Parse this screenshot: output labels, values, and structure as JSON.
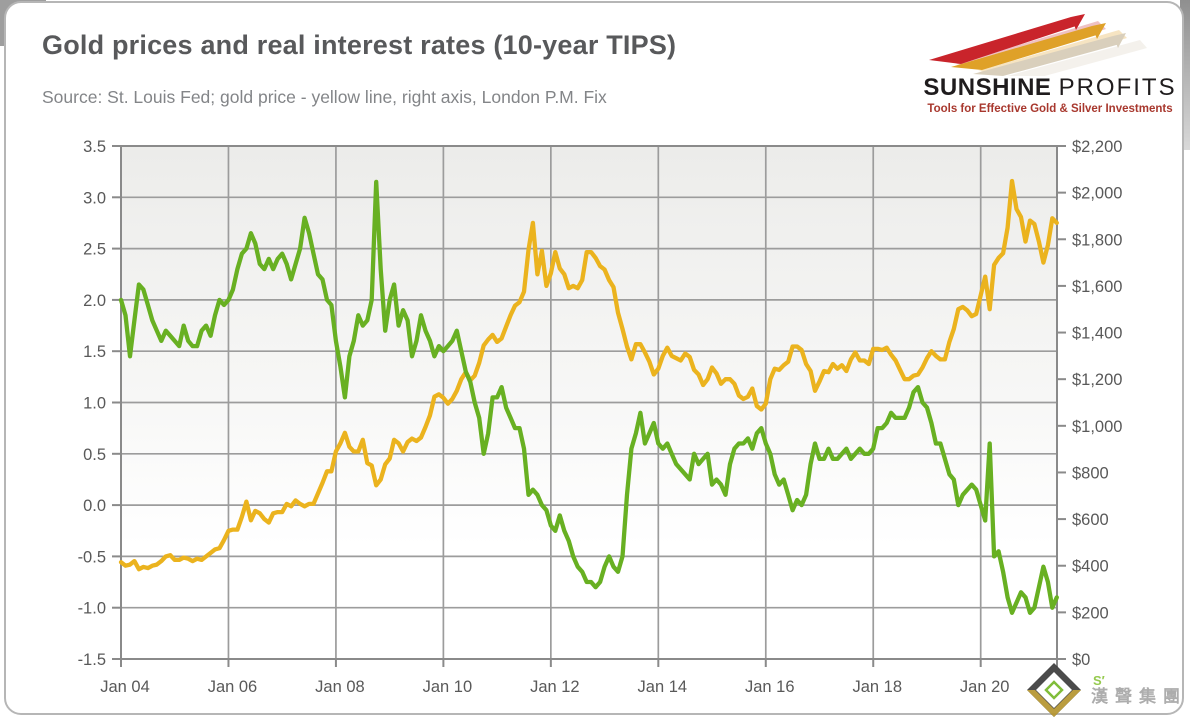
{
  "header": {
    "title": "Gold prices and real interest rates (10-year TIPS)",
    "source_note": "Source: St. Louis Fed; gold price - yellow line, right axis, London P.M. Fix"
  },
  "branding": {
    "name_bold": "SUNSHINE",
    "name_light": "PROFITS",
    "tagline": "Tools for Effective Gold & Silver Investments"
  },
  "watermark": {
    "mark": "S′",
    "company": "漢聲集團"
  },
  "colors": {
    "rate_line": "#68b022",
    "gold_line": "#ebb31e",
    "grid": "#9c9c9c",
    "axis": "#8a8a8a",
    "axis_text": "#595959",
    "title_text": "#58595b",
    "subtitle_text": "#838588",
    "logo_red": "#c9242b",
    "logo_amber": "#dfa128",
    "logo_pale": "#d9cfbc",
    "tagline_red": "#a8382e",
    "wm_dark": "#3c3c3c",
    "wm_gold": "#b5952f",
    "wm_green": "#76b82a"
  },
  "chart_data": {
    "type": "line",
    "title": "Gold prices and real interest rates (10-year TIPS)",
    "grid": true,
    "x_axis": {
      "tick_labels": [
        "Jan 04",
        "Jan 06",
        "Jan 08",
        "Jan 10",
        "Jan 12",
        "Jan 14",
        "Jan 16",
        "Jan 18",
        "Jan 20"
      ],
      "tick_years": [
        2004,
        2006,
        2008,
        2010,
        2012,
        2014,
        2016,
        2018,
        2020
      ],
      "range_years": [
        2004,
        2021.42
      ]
    },
    "y_left": {
      "ticks": [
        3.5,
        3.0,
        2.5,
        2.0,
        1.5,
        1.0,
        0.5,
        0.0,
        -0.5,
        -1.0,
        -1.5
      ],
      "range": [
        -1.5,
        3.5
      ]
    },
    "y_right": {
      "tick_labels": [
        "$2,200",
        "$2,000",
        "$1,800",
        "$1,600",
        "$1,400",
        "$1,200",
        "$1,000",
        "$800",
        "$600",
        "$400",
        "$200",
        "$0"
      ],
      "tick_values": [
        2200,
        2000,
        1800,
        1600,
        1400,
        1200,
        1000,
        800,
        600,
        400,
        200,
        0
      ],
      "range": [
        0,
        2200
      ]
    },
    "series": [
      {
        "name": "gold-price-london-pm-fix",
        "label": "Gold price (yellow line, right axis, London P.M. Fix)",
        "axis": "right",
        "color_key": "gold_line",
        "frequency": "monthly",
        "start_year": 2004,
        "values": [
          415,
          400,
          405,
          420,
          385,
          395,
          390,
          400,
          405,
          420,
          440,
          445,
          425,
          425,
          435,
          430,
          420,
          430,
          425,
          440,
          455,
          470,
          475,
          510,
          550,
          555,
          555,
          610,
          675,
          595,
          635,
          625,
          600,
          585,
          625,
          630,
          630,
          665,
          655,
          680,
          665,
          655,
          665,
          665,
          710,
          755,
          805,
          805,
          890,
          925,
          970,
          910,
          890,
          890,
          940,
          840,
          830,
          745,
          770,
          835,
          860,
          940,
          925,
          890,
          930,
          945,
          935,
          950,
          995,
          1045,
          1125,
          1135,
          1120,
          1095,
          1115,
          1150,
          1200,
          1230,
          1195,
          1215,
          1270,
          1345,
          1370,
          1390,
          1360,
          1375,
          1425,
          1475,
          1515,
          1530,
          1575,
          1755,
          1870,
          1650,
          1750,
          1600,
          1655,
          1745,
          1675,
          1650,
          1590,
          1600,
          1590,
          1625,
          1745,
          1745,
          1720,
          1685,
          1670,
          1625,
          1595,
          1485,
          1415,
          1340,
          1285,
          1350,
          1350,
          1315,
          1275,
          1220,
          1245,
          1300,
          1335,
          1300,
          1290,
          1280,
          1310,
          1295,
          1240,
          1220,
          1175,
          1200,
          1250,
          1225,
          1180,
          1200,
          1200,
          1180,
          1130,
          1115,
          1125,
          1160,
          1085,
          1070,
          1095,
          1200,
          1245,
          1240,
          1260,
          1275,
          1340,
          1340,
          1325,
          1265,
          1235,
          1150,
          1190,
          1235,
          1230,
          1265,
          1245,
          1260,
          1235,
          1285,
          1315,
          1280,
          1280,
          1265,
          1330,
          1330,
          1325,
          1335,
          1305,
          1280,
          1240,
          1200,
          1200,
          1215,
          1220,
          1250,
          1290,
          1320,
          1300,
          1285,
          1285,
          1360,
          1415,
          1500,
          1510,
          1495,
          1470,
          1480,
          1560,
          1640,
          1500,
          1690,
          1720,
          1740,
          1850,
          2050,
          1930,
          1895,
          1790,
          1880,
          1865,
          1790,
          1700,
          1775,
          1890,
          1870
        ]
      },
      {
        "name": "real-interest-rate-10y-tips",
        "label": "Real interest rate, 10-year TIPS (green line, left axis, %)",
        "axis": "left",
        "color_key": "rate_line",
        "frequency": "monthly",
        "start_year": 2004,
        "values": [
          2.0,
          1.85,
          1.45,
          1.8,
          2.15,
          2.1,
          1.95,
          1.8,
          1.7,
          1.6,
          1.7,
          1.65,
          1.6,
          1.55,
          1.75,
          1.6,
          1.55,
          1.55,
          1.7,
          1.75,
          1.65,
          1.85,
          2.0,
          1.95,
          2.0,
          2.1,
          2.3,
          2.45,
          2.5,
          2.65,
          2.55,
          2.35,
          2.3,
          2.4,
          2.3,
          2.4,
          2.45,
          2.35,
          2.2,
          2.35,
          2.5,
          2.8,
          2.65,
          2.45,
          2.25,
          2.2,
          2.0,
          1.95,
          1.6,
          1.35,
          1.05,
          1.45,
          1.6,
          1.85,
          1.75,
          1.8,
          2.0,
          3.15,
          2.3,
          1.7,
          2.0,
          2.15,
          1.75,
          1.9,
          1.8,
          1.45,
          1.6,
          1.85,
          1.7,
          1.6,
          1.45,
          1.55,
          1.5,
          1.55,
          1.6,
          1.7,
          1.5,
          1.3,
          1.2,
          1.0,
          0.85,
          0.5,
          0.7,
          1.05,
          1.05,
          1.15,
          0.95,
          0.85,
          0.75,
          0.75,
          0.55,
          0.1,
          0.15,
          0.1,
          0.0,
          -0.05,
          -0.2,
          -0.25,
          -0.1,
          -0.25,
          -0.35,
          -0.5,
          -0.6,
          -0.65,
          -0.75,
          -0.75,
          -0.8,
          -0.75,
          -0.6,
          -0.5,
          -0.6,
          -0.65,
          -0.5,
          0.1,
          0.55,
          0.7,
          0.9,
          0.6,
          0.7,
          0.8,
          0.6,
          0.55,
          0.6,
          0.5,
          0.4,
          0.35,
          0.3,
          0.25,
          0.5,
          0.4,
          0.45,
          0.5,
          0.2,
          0.25,
          0.2,
          0.1,
          0.4,
          0.55,
          0.6,
          0.6,
          0.65,
          0.55,
          0.7,
          0.75,
          0.6,
          0.5,
          0.3,
          0.2,
          0.25,
          0.1,
          -0.05,
          0.05,
          0.0,
          0.1,
          0.4,
          0.6,
          0.45,
          0.45,
          0.55,
          0.45,
          0.45,
          0.5,
          0.55,
          0.45,
          0.5,
          0.55,
          0.5,
          0.5,
          0.55,
          0.75,
          0.75,
          0.8,
          0.9,
          0.85,
          0.85,
          0.85,
          0.95,
          1.1,
          1.15,
          1.0,
          0.95,
          0.8,
          0.6,
          0.6,
          0.45,
          0.3,
          0.25,
          0.0,
          0.1,
          0.15,
          0.2,
          0.15,
          0.0,
          -0.15,
          0.6,
          -0.5,
          -0.45,
          -0.65,
          -0.9,
          -1.05,
          -0.95,
          -0.85,
          -0.9,
          -1.05,
          -1.0,
          -0.8,
          -0.6,
          -0.75,
          -1.0,
          -0.9
        ]
      }
    ]
  }
}
